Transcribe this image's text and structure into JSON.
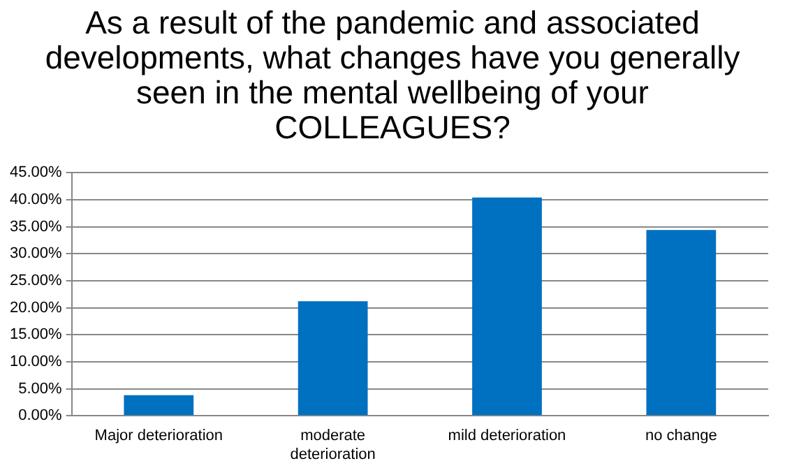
{
  "chart_data": {
    "type": "bar",
    "title": "As a result of the pandemic and associated developments, what changes have you generally seen in the mental wellbeing of your COLLEAGUES?",
    "categories": [
      "Major deterioration",
      "moderate deterioration",
      "mild deterioration",
      "no change"
    ],
    "values": [
      3.8,
      21.2,
      40.4,
      34.4
    ],
    "color": "#0070c0",
    "ylim": [
      0,
      45
    ],
    "yticks": [
      {
        "value": 0,
        "label": "0.00%"
      },
      {
        "value": 5,
        "label": "5.00%"
      },
      {
        "value": 10,
        "label": "10.00%"
      },
      {
        "value": 15,
        "label": "15.00%"
      },
      {
        "value": 20,
        "label": "20.00%"
      },
      {
        "value": 25,
        "label": "25.00%"
      },
      {
        "value": 30,
        "label": "30.00%"
      },
      {
        "value": 35,
        "label": "35.00%"
      },
      {
        "value": 40,
        "label": "40.00%"
      },
      {
        "value": 45,
        "label": "45.00%"
      }
    ],
    "grid": "y",
    "legend": false
  }
}
